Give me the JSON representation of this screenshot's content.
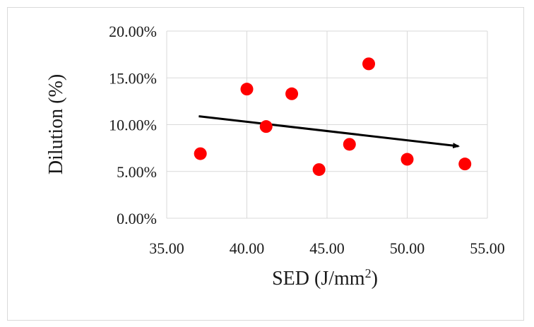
{
  "chart_data": {
    "type": "scatter",
    "title": "",
    "xlabel": "SED (J/mm",
    "xlabel_sup": "2",
    "xlabel_suffix": ")",
    "ylabel": "Dilution (%)",
    "xlim": [
      35,
      55
    ],
    "ylim": [
      0,
      0.2
    ],
    "x_ticks": [
      35,
      40,
      45,
      50,
      55
    ],
    "y_ticks": [
      0,
      0.05,
      0.1,
      0.15,
      0.2
    ],
    "x_tick_labels": [
      "35.00",
      "40.00",
      "45.00",
      "50.00",
      "55.00"
    ],
    "y_tick_labels": [
      "0.00%",
      "5.00%",
      "10.00%",
      "15.00%",
      "20.00%"
    ],
    "grid": true,
    "legend": "none",
    "point_color": "#ff0000",
    "trend_color": "#000000",
    "series": [
      {
        "points": [
          {
            "x": 37.1,
            "y": 0.069
          },
          {
            "x": 40.0,
            "y": 0.138
          },
          {
            "x": 41.2,
            "y": 0.098
          },
          {
            "x": 42.8,
            "y": 0.133
          },
          {
            "x": 44.5,
            "y": 0.052
          },
          {
            "x": 46.4,
            "y": 0.079
          },
          {
            "x": 47.6,
            "y": 0.165
          },
          {
            "x": 50.0,
            "y": 0.063
          },
          {
            "x": 53.6,
            "y": 0.058
          }
        ]
      }
    ],
    "trend_arrow": {
      "start": {
        "x": 37.0,
        "y": 0.109
      },
      "end": {
        "x": 53.2,
        "y": 0.077
      }
    }
  }
}
